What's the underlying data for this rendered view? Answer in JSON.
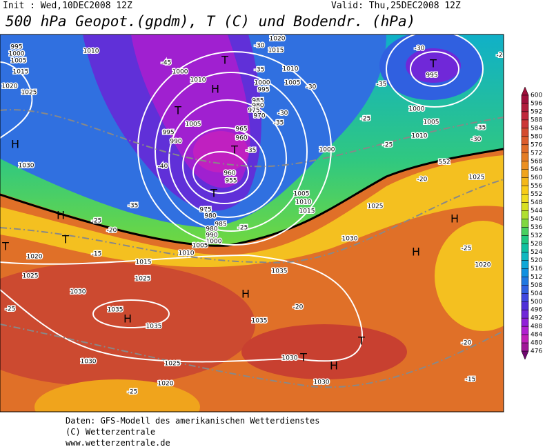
{
  "header": {
    "init": "Init : Wed,10DEC2008 12Z",
    "valid": "Valid: Thu,25DEC2008 12Z",
    "title": "500 hPa Geopot.(gpdm), T (C) und Bodendr. (hPa)"
  },
  "colorbar": {
    "labels": [
      600,
      596,
      592,
      588,
      584,
      580,
      576,
      572,
      568,
      564,
      560,
      556,
      552,
      548,
      544,
      540,
      536,
      532,
      528,
      524,
      520,
      516,
      512,
      508,
      504,
      500,
      496,
      492,
      488,
      484,
      480,
      476
    ],
    "colors": [
      "#a0103c",
      "#b01c3c",
      "#c0283c",
      "#cc3838",
      "#d44c30",
      "#dc5c2c",
      "#e06c28",
      "#e47c24",
      "#ec9020",
      "#f0a41c",
      "#f4b818",
      "#f8cc18",
      "#f0dc20",
      "#d8e020",
      "#b0e030",
      "#80d840",
      "#48d060",
      "#20c880",
      "#10c0a0",
      "#10b8c0",
      "#10a8d8",
      "#1090e0",
      "#2078e0",
      "#3060e0",
      "#4048e0",
      "#5030d8",
      "#7028d8",
      "#9020d8",
      "#b020d0",
      "#c020b8",
      "#a01898",
      "#700870"
    ]
  },
  "map_labels": [
    "995",
    "1000",
    "1005",
    "1015",
    "1020",
    "1025",
    "H",
    "1030",
    "1010",
    "1000",
    "-45",
    "1010",
    "H",
    "T",
    "1020",
    "1015",
    "-30",
    "-35",
    "1010",
    "1005",
    "-30",
    "1000",
    "995",
    "T",
    "985",
    "980",
    "975",
    "970",
    "1005",
    "995",
    "990",
    "965",
    "-30",
    "-35",
    "960",
    "T",
    "-35",
    "-40",
    "960",
    "955",
    "T",
    "975",
    "980",
    "985",
    "980",
    "990",
    "1000",
    "1005",
    "1010",
    "1015",
    "1000",
    "1005",
    "1010",
    "1015",
    "1025",
    "1030",
    "-20",
    "-30",
    "T",
    "995",
    "-35",
    "1000",
    "1005",
    "1010",
    "-35",
    "-30",
    "-25",
    "-25",
    "552",
    "1025",
    "H",
    "H",
    "-25",
    "1020",
    "-35",
    "-25",
    "-20",
    "H",
    "T",
    "T",
    "-15",
    "1020",
    "1025",
    "1025",
    "1035",
    "-25",
    "1030",
    "1035",
    "H",
    "1035",
    "H",
    "1035",
    "-20",
    "T",
    "-20",
    "1030",
    "1025",
    "1030",
    "T",
    "H",
    "1030",
    "1020",
    "-25",
    "-15",
    "-25",
    "-2"
  ],
  "footer": [
    "Daten: GFS-Modell des amerikanischen Wetterdienstes",
    "(C) Wetterzentrale",
    "www.wetterzentrale.de"
  ]
}
